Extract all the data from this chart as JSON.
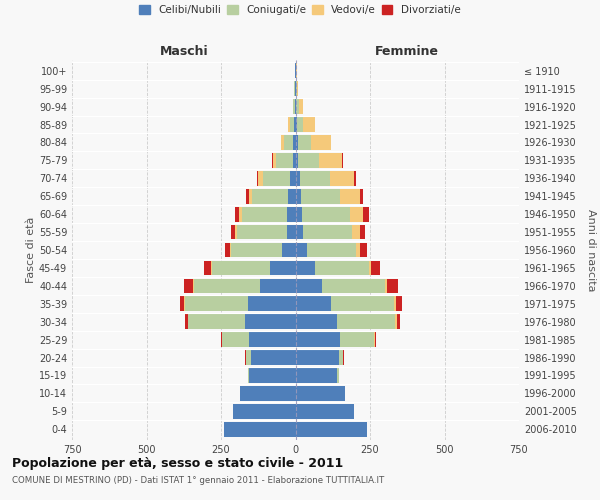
{
  "age_groups": [
    "0-4",
    "5-9",
    "10-14",
    "15-19",
    "20-24",
    "25-29",
    "30-34",
    "35-39",
    "40-44",
    "45-49",
    "50-54",
    "55-59",
    "60-64",
    "65-69",
    "70-74",
    "75-79",
    "80-84",
    "85-89",
    "90-94",
    "95-99",
    "100+"
  ],
  "birth_years": [
    "2006-2010",
    "2001-2005",
    "1996-2000",
    "1991-1995",
    "1986-1990",
    "1981-1985",
    "1976-1980",
    "1971-1975",
    "1966-1970",
    "1961-1965",
    "1956-1960",
    "1951-1955",
    "1946-1950",
    "1941-1945",
    "1936-1940",
    "1931-1935",
    "1926-1930",
    "1921-1925",
    "1916-1920",
    "1911-1915",
    "≤ 1910"
  ],
  "maschi": {
    "celibi": [
      240,
      210,
      185,
      155,
      150,
      155,
      170,
      160,
      120,
      85,
      45,
      30,
      30,
      25,
      20,
      10,
      8,
      4,
      3,
      2,
      2
    ],
    "coniugati": [
      0,
      0,
      2,
      5,
      15,
      90,
      190,
      210,
      220,
      195,
      170,
      165,
      150,
      120,
      90,
      55,
      30,
      15,
      5,
      2,
      1
    ],
    "vedovi": [
      0,
      0,
      0,
      0,
      1,
      2,
      2,
      3,
      4,
      5,
      6,
      8,
      10,
      12,
      15,
      12,
      10,
      5,
      2,
      0,
      0
    ],
    "divorziati": [
      0,
      0,
      0,
      0,
      2,
      3,
      10,
      15,
      30,
      22,
      15,
      15,
      12,
      8,
      5,
      2,
      0,
      0,
      0,
      0,
      0
    ]
  },
  "femmine": {
    "nubili": [
      240,
      195,
      165,
      140,
      145,
      150,
      140,
      120,
      90,
      65,
      38,
      25,
      22,
      18,
      15,
      10,
      8,
      5,
      3,
      2,
      2
    ],
    "coniugate": [
      0,
      0,
      2,
      5,
      15,
      115,
      195,
      210,
      210,
      180,
      165,
      165,
      160,
      130,
      100,
      70,
      45,
      20,
      8,
      3,
      1
    ],
    "vedove": [
      0,
      0,
      0,
      0,
      1,
      2,
      4,
      6,
      8,
      10,
      15,
      25,
      45,
      70,
      80,
      75,
      65,
      40,
      15,
      3,
      1
    ],
    "divorziate": [
      0,
      0,
      0,
      0,
      2,
      3,
      10,
      20,
      35,
      28,
      22,
      18,
      18,
      10,
      8,
      5,
      2,
      0,
      0,
      0,
      0
    ]
  },
  "colors": {
    "celibi": "#4f7fba",
    "coniugati": "#b8cfa0",
    "vedovi": "#f5c97a",
    "divorziati": "#cc2222"
  },
  "xlim": 750,
  "title": "Popolazione per età, sesso e stato civile - 2011",
  "subtitle": "COMUNE DI MESTRINO (PD) - Dati ISTAT 1° gennaio 2011 - Elaborazione TUTTITALIA.IT",
  "ylabel_left": "Fasce di età",
  "ylabel_right": "Anni di nascita",
  "xlabel_maschi": "Maschi",
  "xlabel_femmine": "Femmine",
  "background_color": "#f8f8f8",
  "grid_color": "#cccccc"
}
